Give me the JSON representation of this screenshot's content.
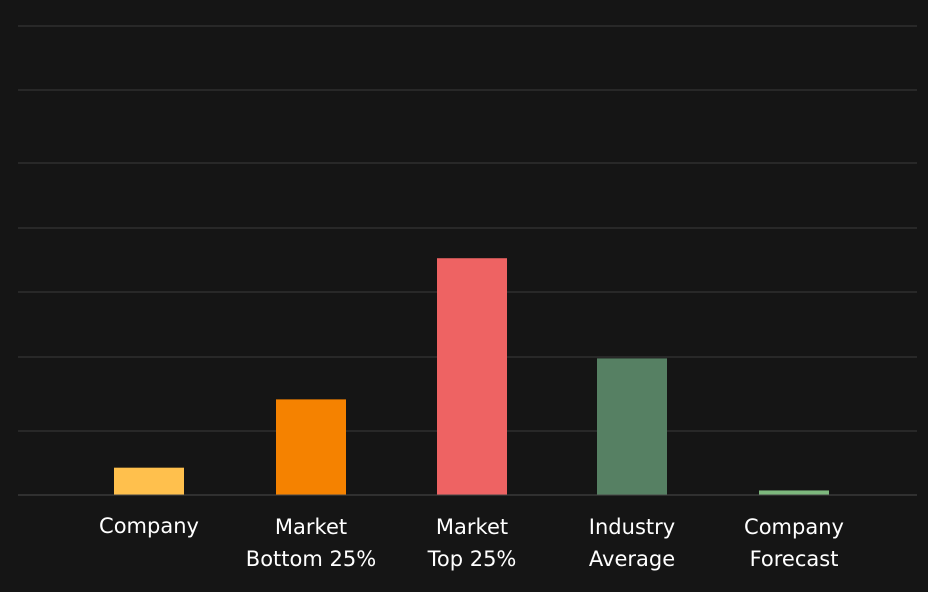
{
  "chart_data": {
    "type": "bar",
    "categories": [
      [
        "Company"
      ],
      [
        "Market",
        "Bottom 25%"
      ],
      [
        "Market",
        "Top 25%"
      ],
      [
        "Industry",
        "Average"
      ],
      [
        "Company",
        "Forecast"
      ]
    ],
    "values": [
      0.6,
      2.1,
      5.2,
      3.0,
      0.1
    ],
    "colors": [
      "#FFC04D",
      "#F58200",
      "#EE6363",
      "#568063",
      "#7DB87D"
    ],
    "background": "#151515",
    "gridline_color": "#3A3A3A",
    "ylim": [
      0,
      10.3
    ],
    "grid": true,
    "title": "",
    "xlabel": "",
    "ylabel": ""
  }
}
